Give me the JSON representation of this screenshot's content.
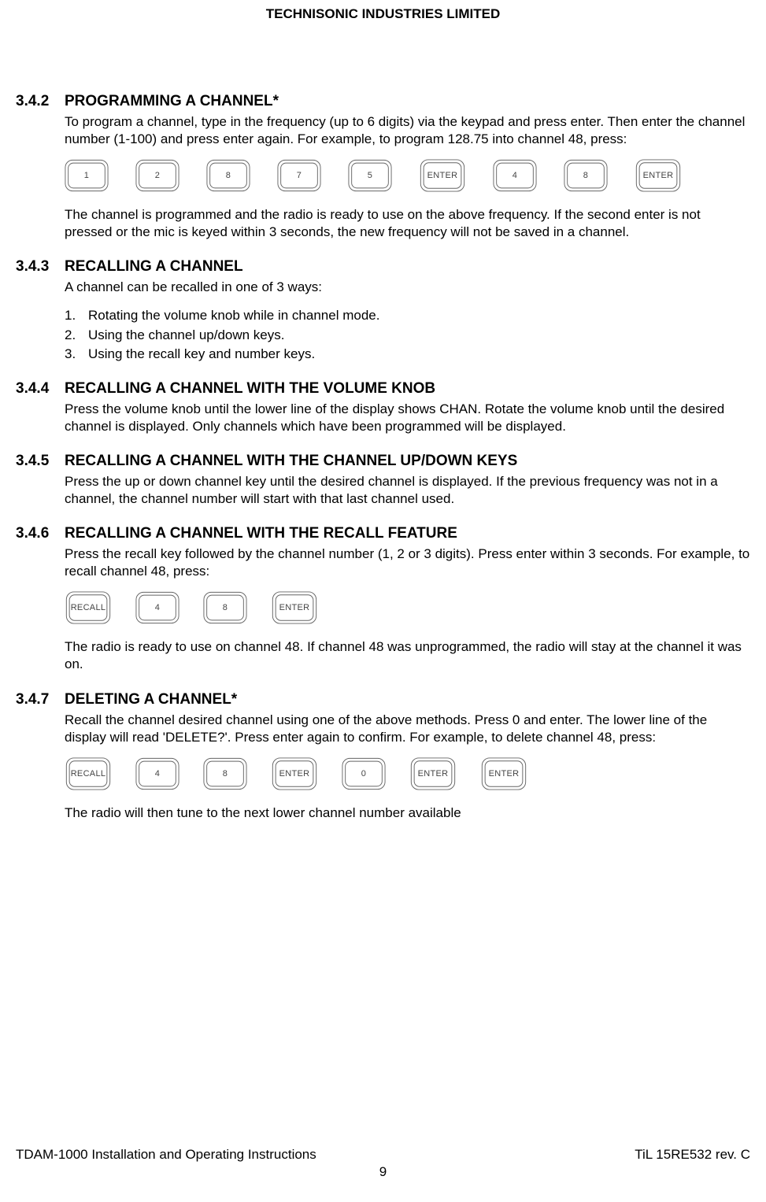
{
  "header": "TECHNISONIC INDUSTRIES LIMITED",
  "sections": {
    "s342": {
      "num": "3.4.2",
      "title": "PROGRAMMING A CHANNEL*",
      "p1": "To program a channel, type in the frequency (up to 6 digits) via the keypad and press enter. Then enter the channel number (1-100) and press enter again. For example, to program 128.75 into channel 48, press:",
      "keys": [
        "1",
        "2",
        "8",
        "7",
        "5",
        "ENTER",
        "4",
        "8",
        "ENTER"
      ],
      "p2": "The channel is programmed and the radio is ready to use on the above frequency. If the second enter is not pressed or the mic is keyed within 3 seconds, the new frequency will not be saved in a channel."
    },
    "s343": {
      "num": "3.4.3",
      "title": "RECALLING A CHANNEL",
      "p1": "A channel can be recalled in one of 3 ways:",
      "items": [
        {
          "n": "1.",
          "t": "Rotating the volume knob while in channel mode."
        },
        {
          "n": "2.",
          "t": "Using the channel up/down keys."
        },
        {
          "n": "3.",
          "t": "Using the recall key and number keys."
        }
      ]
    },
    "s344": {
      "num": "3.4.4",
      "title": "RECALLING A CHANNEL WITH THE VOLUME KNOB",
      "p1": "Press the volume knob until the lower line of the display shows CHAN. Rotate the volume knob until the desired channel is displayed. Only channels which have been programmed will be displayed."
    },
    "s345": {
      "num": "3.4.5",
      "title": "RECALLING A CHANNEL WITH THE CHANNEL UP/DOWN KEYS",
      "p1": "Press the up or down channel key until the desired channel is displayed. If the previous frequency was not in a channel, the channel number will start with that last channel used."
    },
    "s346": {
      "num": "3.4.6",
      "title": "RECALLING A CHANNEL WITH THE RECALL FEATURE",
      "p1": "Press the recall key followed by the channel number (1, 2 or 3 digits). Press enter within 3 seconds. For example, to recall channel 48, press:",
      "keys": [
        "RECALL",
        "4",
        "8",
        "ENTER"
      ],
      "p2": "The radio is ready to use on channel 48. If channel 48 was unprogrammed, the radio will stay at the channel it was on."
    },
    "s347": {
      "num": "3.4.7",
      "title": "DELETING A CHANNEL*",
      "p1": "Recall the channel desired channel using one of the above methods. Press 0 and enter. The lower line of the display will read 'DELETE?'. Press enter again to confirm. For example, to delete channel 48, press:",
      "keys": [
        "RECALL",
        "4",
        "8",
        "ENTER",
        "0",
        "ENTER",
        "ENTER"
      ],
      "p2": "The radio will then tune to the next lower channel number available"
    }
  },
  "footer": {
    "left": "TDAM-1000 Installation and Operating Instructions",
    "right": "TiL 15RE532 rev. C",
    "page": "9"
  },
  "style": {
    "key_stroke": "#666666",
    "key_fill": "#ffffff"
  }
}
